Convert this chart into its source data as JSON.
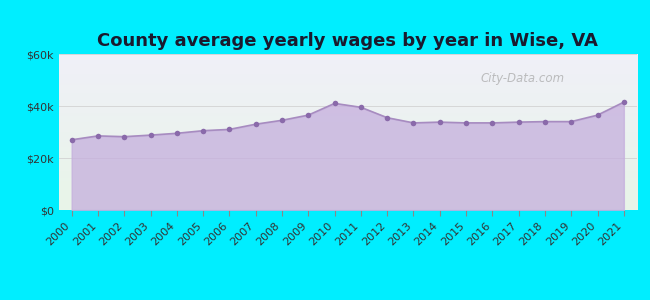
{
  "title": "County average yearly wages by year in Wise, VA",
  "years": [
    2000,
    2001,
    2002,
    2003,
    2004,
    2005,
    2006,
    2007,
    2008,
    2009,
    2010,
    2011,
    2012,
    2013,
    2014,
    2015,
    2016,
    2017,
    2018,
    2019,
    2020,
    2021
  ],
  "wages": [
    27000,
    28500,
    28200,
    28800,
    29500,
    30500,
    31000,
    33000,
    34500,
    36500,
    41000,
    39500,
    35500,
    33500,
    33800,
    33500,
    33500,
    33800,
    34000,
    34000,
    36500,
    41500
  ],
  "ylim": [
    0,
    60000
  ],
  "yticks": [
    0,
    20000,
    40000,
    60000
  ],
  "ytick_labels": [
    "$0",
    "$20k",
    "$40k",
    "$60k"
  ],
  "line_color": "#a78cc0",
  "fill_color": "#c5aedd",
  "fill_alpha": 0.75,
  "marker_color": "#8a6aaa",
  "bg_outer": "#00eeff",
  "bg_gradient_top": "#e8f5e8",
  "bg_gradient_bottom": "#f0f0f8",
  "watermark": "City-Data.com",
  "title_fontsize": 13,
  "tick_fontsize": 8
}
